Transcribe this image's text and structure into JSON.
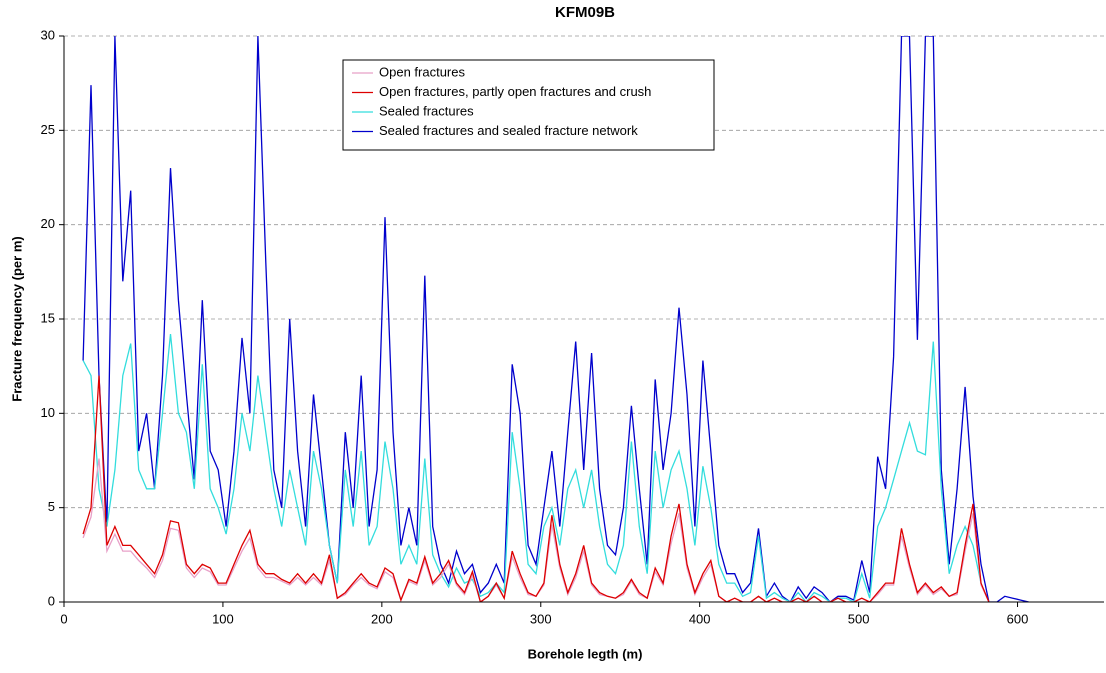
{
  "chart_data": {
    "type": "line",
    "title": "KFM09B",
    "x_label": "Borehole legth (m)",
    "y_label": "Fracture frequency (per m)",
    "xlim": [
      0,
      650
    ],
    "xticks": [
      0,
      100,
      200,
      300,
      400,
      500,
      600
    ],
    "ylim": [
      0,
      30
    ],
    "yticks": [
      0,
      5,
      10,
      15,
      20,
      25,
      30
    ],
    "grid": true,
    "legend": "top",
    "x": [
      12,
      17,
      22,
      27,
      32,
      37,
      42,
      47,
      52,
      57,
      62,
      67,
      72,
      77,
      82,
      87,
      92,
      97,
      102,
      107,
      112,
      117,
      122,
      127,
      132,
      137,
      142,
      147,
      152,
      157,
      162,
      167,
      172,
      177,
      182,
      187,
      192,
      197,
      202,
      207,
      212,
      217,
      222,
      227,
      232,
      237,
      242,
      247,
      252,
      257,
      262,
      267,
      272,
      277,
      282,
      287,
      292,
      297,
      302,
      307,
      312,
      317,
      322,
      327,
      332,
      337,
      342,
      347,
      352,
      357,
      362,
      367,
      372,
      377,
      382,
      387,
      392,
      397,
      402,
      407,
      412,
      417,
      422,
      427,
      432,
      437,
      442,
      447,
      452,
      457,
      462,
      467,
      472,
      477,
      482,
      487,
      492,
      497,
      502,
      507,
      512,
      517,
      522,
      527,
      532,
      537,
      542,
      547,
      552,
      557,
      562,
      567,
      572,
      577,
      582,
      587,
      592,
      597,
      602,
      607
    ],
    "series": [
      {
        "name": "Open fractures",
        "color": "#e8a0c8",
        "values": [
          3.4,
          4.5,
          7.6,
          2.7,
          3.6,
          2.7,
          2.7,
          2.2,
          1.8,
          1.3,
          2.2,
          3.9,
          3.8,
          1.8,
          1.3,
          1.8,
          1.6,
          0.9,
          0.9,
          1.8,
          2.7,
          3.4,
          1.8,
          1.3,
          1.3,
          1.1,
          0.9,
          1.3,
          0.9,
          1.3,
          0.9,
          2.2,
          0.2,
          0.4,
          0.9,
          1.3,
          0.9,
          0.7,
          1.6,
          1.3,
          0.1,
          1.1,
          0.9,
          2.2,
          0.9,
          1.3,
          2,
          0.9,
          0.4,
          1.4,
          0,
          0.3,
          0.9,
          0.2,
          2.4,
          1.3,
          0.4,
          0.3,
          0.9,
          4.1,
          1.8,
          0.4,
          1.3,
          2.7,
          0.9,
          0.4,
          0.3,
          0.2,
          0.4,
          1.1,
          0.4,
          0.2,
          1.6,
          0.9,
          3.1,
          4.7,
          1.8,
          0.4,
          1.3,
          2,
          0.3,
          0,
          0.2,
          0,
          0,
          0.3,
          0,
          0.2,
          0,
          0,
          0.2,
          0,
          0.3,
          0,
          0,
          0.2,
          0,
          0,
          0.2,
          0,
          0.4,
          0.9,
          0.9,
          3.5,
          1.8,
          0.4,
          0.9,
          0.4,
          0.7,
          0.3,
          0.4,
          2.7,
          4.7,
          0.9,
          0,
          null,
          null,
          null,
          null,
          null
        ]
      },
      {
        "name": "Open fractures, partly open fractures and crush",
        "color": "#dd0000",
        "values": [
          3.6,
          5,
          12,
          3,
          4,
          3,
          3,
          2.5,
          2,
          1.5,
          2.5,
          4.3,
          4.2,
          2,
          1.5,
          2,
          1.8,
          1,
          1,
          2,
          3,
          3.8,
          2,
          1.5,
          1.5,
          1.2,
          1,
          1.5,
          1,
          1.5,
          1,
          2.5,
          0.2,
          0.5,
          1,
          1.5,
          1,
          0.8,
          1.8,
          1.5,
          0.1,
          1.2,
          1,
          2.4,
          1,
          1.5,
          2.2,
          1,
          0.5,
          1.6,
          0,
          0.3,
          1,
          0.2,
          2.7,
          1.5,
          0.5,
          0.3,
          1,
          4.6,
          2,
          0.5,
          1.5,
          3,
          1,
          0.5,
          0.3,
          0.2,
          0.5,
          1.2,
          0.5,
          0.2,
          1.8,
          1,
          3.5,
          5.2,
          2,
          0.5,
          1.5,
          2.2,
          0.3,
          0,
          0.2,
          0,
          0,
          0.3,
          0,
          0.2,
          0,
          0,
          0.2,
          0,
          0.3,
          0,
          0,
          0.2,
          0,
          0,
          0.2,
          0,
          0.5,
          1,
          1,
          3.9,
          2,
          0.5,
          1,
          0.5,
          0.8,
          0.3,
          0.5,
          3,
          5.2,
          1,
          0,
          null,
          null,
          null,
          null,
          null
        ]
      },
      {
        "name": "Sealed fractures",
        "color": "#33dddd",
        "values": [
          12.8,
          12,
          6,
          4,
          7,
          12,
          13.7,
          7,
          6,
          6,
          10,
          14.2,
          10,
          9,
          6,
          12.6,
          6,
          5,
          3.6,
          6,
          10,
          8,
          12,
          9,
          6,
          4,
          7,
          5,
          3,
          8,
          6,
          3,
          1,
          7,
          4,
          8,
          3,
          4,
          8.5,
          6,
          2,
          3,
          2,
          7.6,
          2.5,
          1.5,
          0.8,
          1.8,
          1,
          1.2,
          0.3,
          0.5,
          1,
          0.5,
          9,
          6,
          2,
          1.5,
          4,
          5,
          3,
          6,
          7,
          5,
          7,
          4,
          2,
          1.5,
          3,
          8.5,
          4,
          1.5,
          8,
          5,
          7,
          8,
          6,
          3,
          7.2,
          5,
          2,
          1,
          1,
          0.3,
          0.5,
          3.5,
          0.2,
          0.5,
          0.2,
          0,
          0.5,
          0,
          0.5,
          0.3,
          0,
          0.2,
          0.2,
          0,
          1.5,
          0.2,
          4,
          5,
          6.5,
          8,
          9.5,
          8,
          7.8,
          13.8,
          6,
          1.5,
          3,
          4,
          3,
          1,
          null,
          null,
          null,
          null,
          null,
          null
        ]
      },
      {
        "name": "Sealed fractures and sealed fracture network",
        "color": "#0000cc",
        "values": [
          12.8,
          27.4,
          12,
          4,
          30,
          17,
          21.8,
          8,
          10,
          6,
          12,
          23,
          16,
          11,
          6.5,
          16,
          8,
          7,
          4,
          8,
          14,
          10,
          30,
          18,
          7,
          5,
          15,
          8,
          4,
          11,
          7,
          3,
          1,
          9,
          5,
          12,
          4,
          7,
          20.4,
          9,
          3,
          5,
          3,
          17.3,
          4,
          2,
          1,
          2.7,
          1.5,
          2,
          0.5,
          1,
          2,
          1,
          12.6,
          10,
          3,
          2,
          5,
          8,
          4,
          9,
          13.8,
          7,
          13.2,
          6,
          3,
          2.5,
          5,
          10.4,
          6,
          2,
          11.8,
          7,
          10,
          15.6,
          11,
          4,
          12.8,
          8,
          3,
          1.5,
          1.5,
          0.5,
          1,
          3.9,
          0.3,
          1,
          0.3,
          0,
          0.8,
          0.2,
          0.8,
          0.5,
          0,
          0.3,
          0.3,
          0.1,
          2.2,
          0.5,
          7.7,
          6,
          13,
          30,
          30,
          13.9,
          30,
          30,
          7,
          2,
          6,
          11.4,
          5.6,
          2,
          0,
          0,
          0.3,
          0.2,
          0.1,
          0
        ]
      }
    ]
  }
}
